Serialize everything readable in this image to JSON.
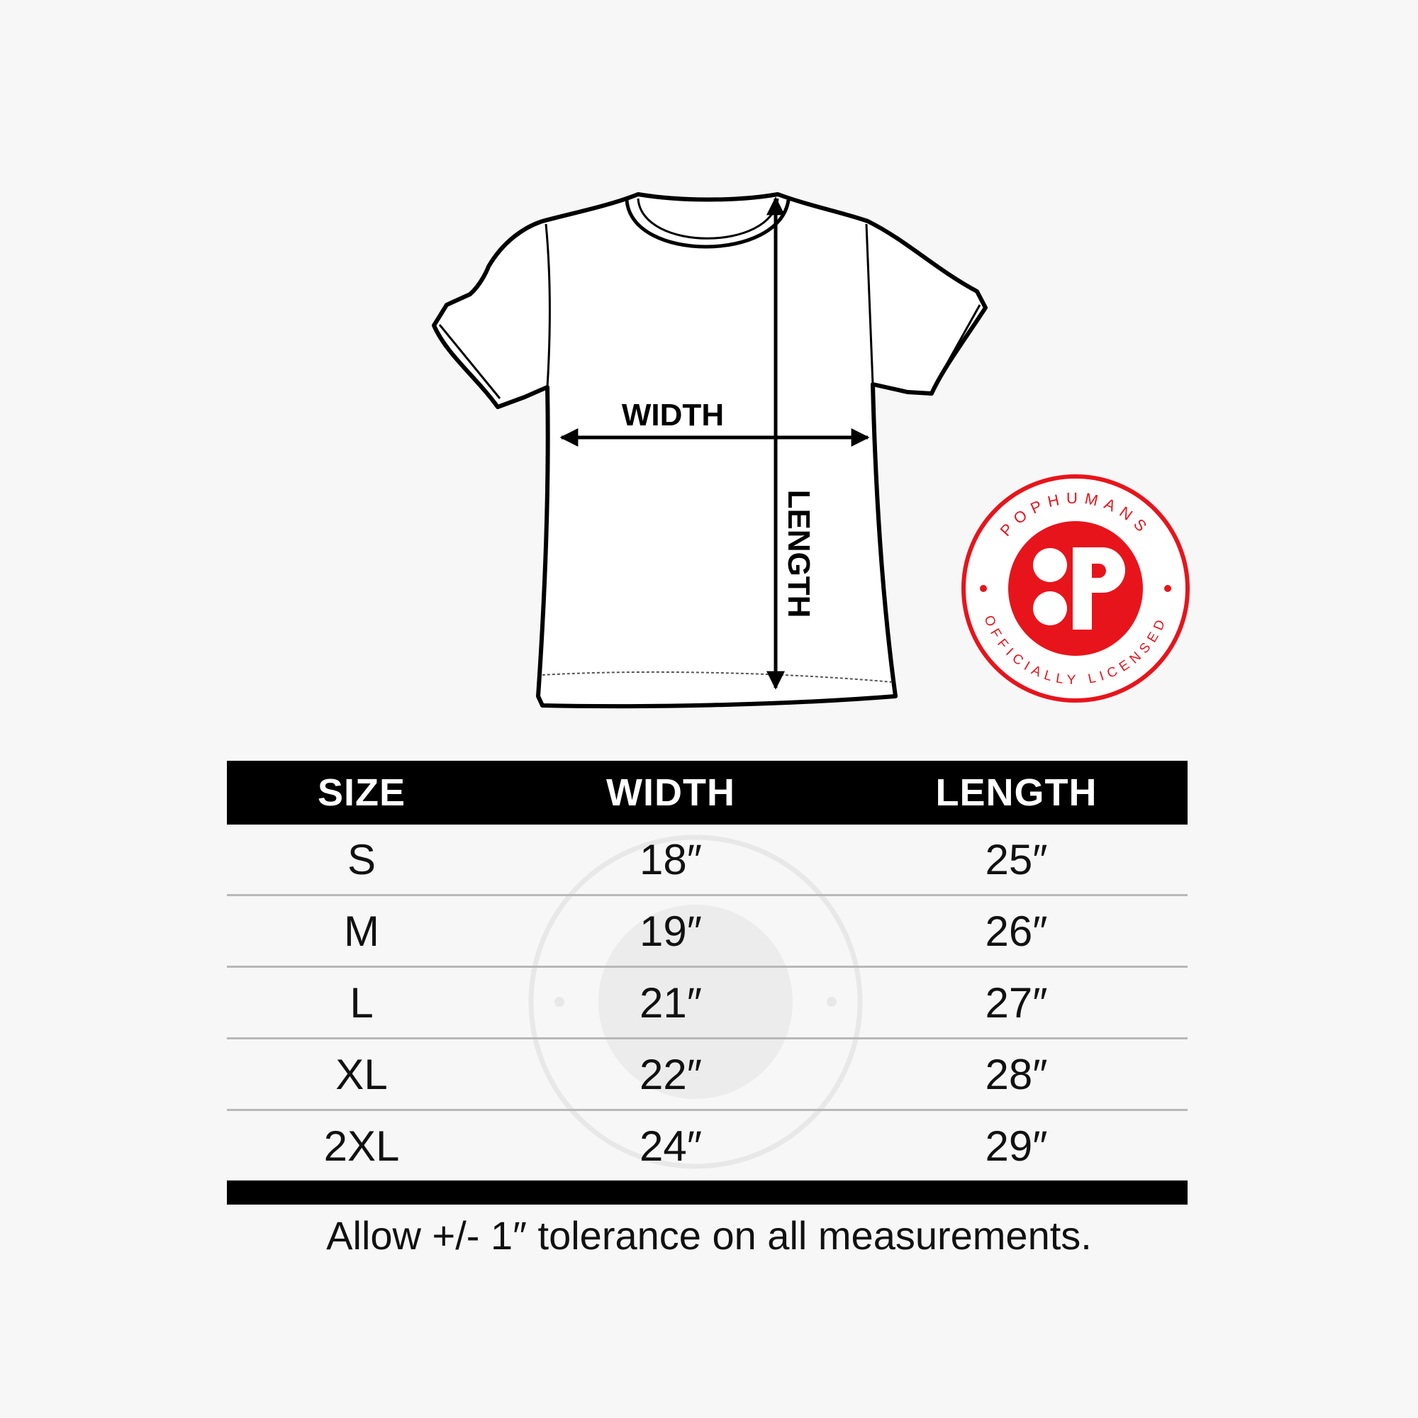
{
  "diagram": {
    "width_label": "WIDTH",
    "length_label": "LENGTH"
  },
  "badge": {
    "brand": "POPHUMANS",
    "tagline": "OFFICIALLY LICENSED",
    "color": "#e8141b"
  },
  "table": {
    "headers": [
      "SIZE",
      "WIDTH",
      "LENGTH"
    ],
    "rows": [
      [
        "S",
        "18″",
        "25″"
      ],
      [
        "M",
        "19″",
        "26″"
      ],
      [
        "L",
        "21″",
        "27″"
      ],
      [
        "XL",
        "22″",
        "28″"
      ],
      [
        "2XL",
        "24″",
        "29″"
      ]
    ]
  },
  "footer": "Allow +/- 1″ tolerance on all measurements."
}
